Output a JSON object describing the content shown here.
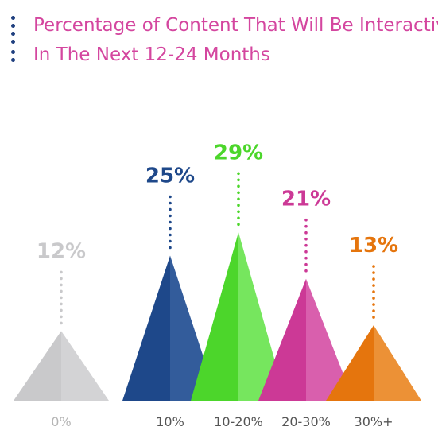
{
  "title": {
    "line1": "Percentage of Content That Will Be Interactive",
    "line2": "In The Next 12-24 Months",
    "color": "#d4469f",
    "dot_color": "#1f3f7f"
  },
  "chart_data": {
    "type": "bar",
    "style": "triangle",
    "title": "Percentage of Content That Will Be Interactive In The Next 12-24 Months",
    "categories": [
      "0%",
      "10%",
      "10-20%",
      "20-30%",
      "30%+"
    ],
    "values": [
      12,
      25,
      29,
      21,
      13
    ],
    "value_labels": [
      "12%",
      "25%",
      "29%",
      "21%",
      "13%"
    ],
    "colors": [
      "#c9c9cb",
      "#1e488a",
      "#4cd62b",
      "#cc3996",
      "#e5750d"
    ],
    "shade_colors": [
      "#d3d3d5",
      "#335c9b",
      "#76e65e",
      "#d95fad",
      "#ec9136"
    ],
    "category_label_colors": [
      "#b5b5b5",
      "#555555",
      "#555555",
      "#555555",
      "#555555"
    ],
    "ylim": [
      0,
      30
    ],
    "grid": false,
    "legend": "none"
  }
}
